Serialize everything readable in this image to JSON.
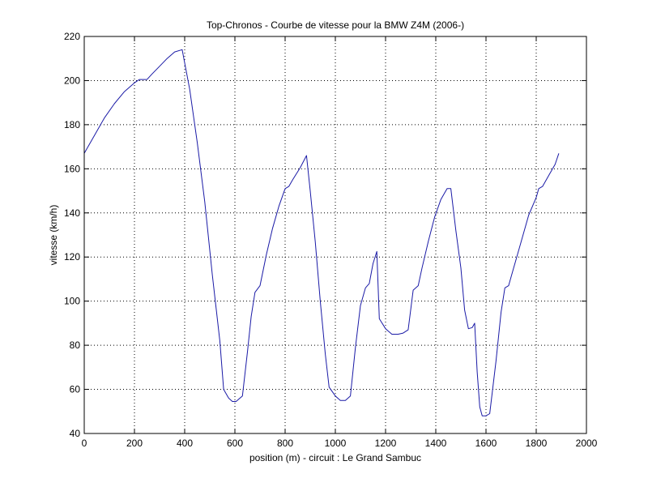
{
  "chart_data": {
    "type": "line",
    "title": "Top-Chronos - Courbe de vitesse pour la BMW Z4M (2006-)",
    "xlabel": "position (m) - circuit : Le Grand Sambuc",
    "ylabel": "vitesse (km/h)",
    "xlim": [
      0,
      2000
    ],
    "ylim": [
      40,
      220
    ],
    "xticks": [
      0,
      200,
      400,
      600,
      800,
      1000,
      1200,
      1400,
      1600,
      1800,
      2000
    ],
    "yticks": [
      40,
      60,
      80,
      100,
      120,
      140,
      160,
      180,
      200,
      220
    ],
    "xtick_labels": [
      "0",
      "200",
      "400",
      "600",
      "800",
      "1000",
      "1200",
      "1400",
      "1600",
      "1800",
      "2000"
    ],
    "ytick_labels": [
      "40",
      "60",
      "80",
      "100",
      "120",
      "140",
      "160",
      "180",
      "200",
      "220"
    ],
    "grid": true,
    "line_color": "#1a1aa6",
    "series": [
      {
        "x": [
          0,
          40,
          80,
          120,
          160,
          200,
          220,
          250,
          270,
          300,
          330,
          360,
          390,
          420,
          450,
          480,
          510,
          540,
          555,
          575,
          590,
          605,
          615,
          630,
          650,
          665,
          680,
          700,
          725,
          750,
          775,
          800,
          815,
          830,
          860,
          885,
          900,
          920,
          940,
          960,
          975,
          1000,
          1020,
          1040,
          1060,
          1080,
          1100,
          1120,
          1135,
          1150,
          1165,
          1175,
          1200,
          1225,
          1250,
          1270,
          1290,
          1310,
          1330,
          1345,
          1370,
          1395,
          1420,
          1445,
          1460,
          1480,
          1500,
          1515,
          1530,
          1545,
          1550,
          1555,
          1565,
          1575,
          1585,
          1600,
          1615,
          1640,
          1660,
          1675,
          1690,
          1710,
          1740,
          1770,
          1800,
          1810,
          1825,
          1850,
          1875,
          1890
        ],
        "y": [
          167,
          175,
          183,
          189.5,
          195,
          199,
          200.5,
          200.5,
          203,
          206.5,
          210,
          213,
          214,
          196,
          172,
          145,
          112,
          82,
          60,
          56,
          54.5,
          54.5,
          55.5,
          57,
          77,
          93,
          104,
          107,
          121,
          133,
          143,
          151,
          152,
          155,
          160.5,
          166,
          150,
          127,
          100,
          76,
          61,
          57,
          55,
          55,
          57,
          79,
          98,
          106,
          108,
          117,
          122.5,
          92,
          87.5,
          85,
          85,
          85.5,
          87,
          105,
          107,
          115,
          127,
          138,
          146,
          151,
          151,
          132,
          115,
          96,
          87.5,
          88,
          89,
          90,
          68,
          52,
          48,
          48,
          49,
          73,
          95,
          106,
          107,
          115,
          127,
          139,
          147,
          151,
          152,
          157,
          162,
          167
        ]
      }
    ]
  }
}
